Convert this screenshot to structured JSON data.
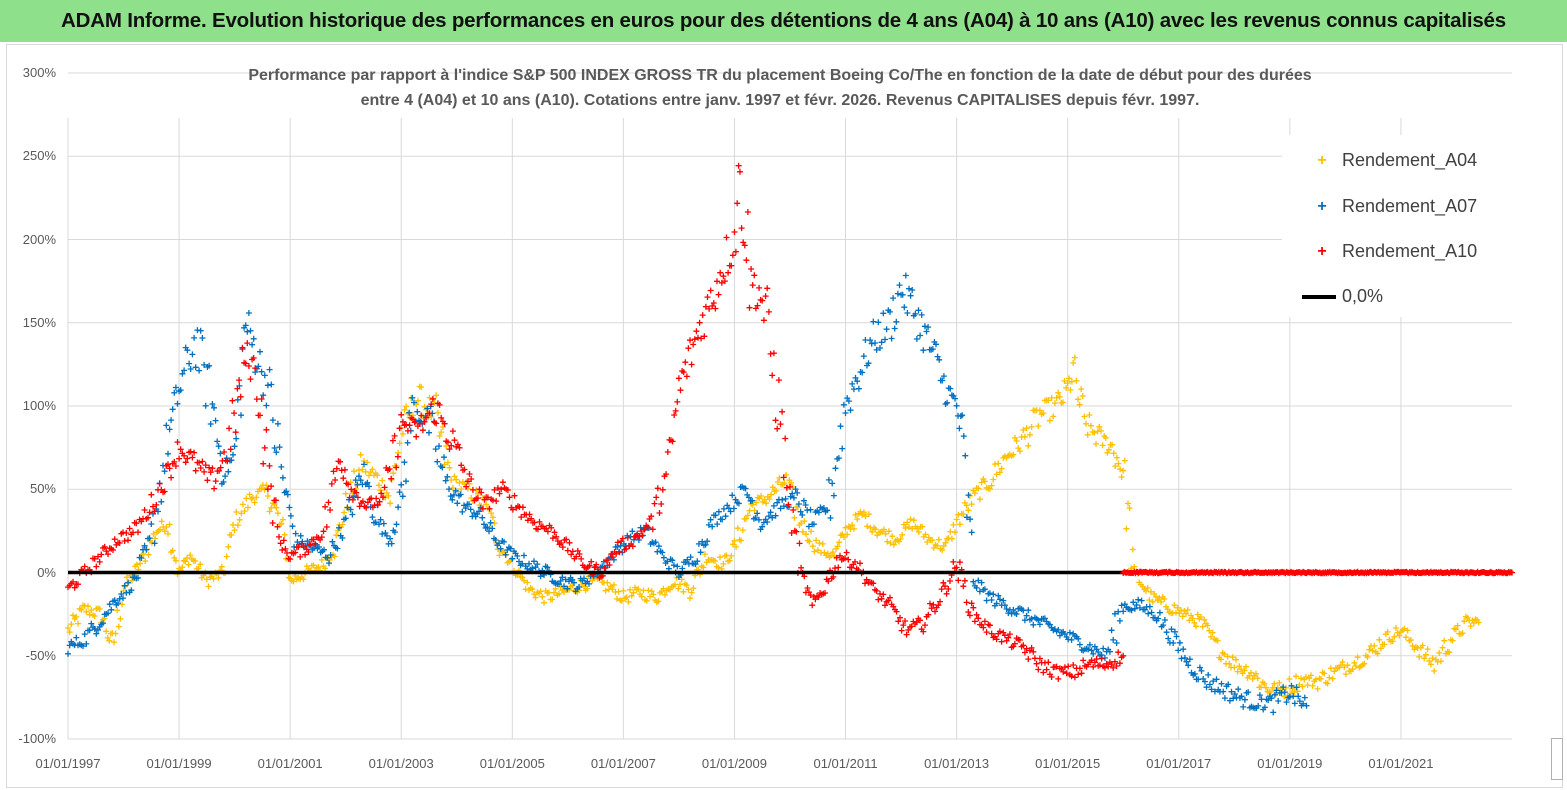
{
  "header": {
    "title": "ADAM Informe. Evolution historique des performances en euros pour des détentions de 4 ans (A04) à 10 ans (A10) avec les revenus connus capitalisés"
  },
  "colors": {
    "banner": "#8fe08a",
    "a04": "#ffc000",
    "a07": "#0070c0",
    "a10": "#ff0000",
    "zero": "#000000"
  },
  "chart_data": {
    "type": "scatter",
    "title_line1": "Performance par rapport à l'indice S&P 500 INDEX GROSS TR  du placement Boeing Co/The en fonction de la date de début pour des durées",
    "title_line2": "entre 4 (A04) et 10 ans (A10). Cotations entre janv. 1997 et févr. 2026. Revenus CAPITALISES depuis févr. 1997.",
    "xlabel": "",
    "ylabel": "",
    "xlim": [
      1997.0,
      2023.0
    ],
    "ylim": [
      -100,
      300
    ],
    "ytick_values": [
      -100,
      -50,
      0,
      50,
      100,
      150,
      200,
      250,
      300
    ],
    "ytick_labels": [
      "-100%",
      "-50%",
      "0%",
      "50%",
      "100%",
      "150%",
      "200%",
      "250%",
      "300%"
    ],
    "xtick_values": [
      1997,
      1999,
      2001,
      2003,
      2005,
      2007,
      2009,
      2011,
      2013,
      2015,
      2017,
      2019,
      2021
    ],
    "xtick_labels": [
      "01/01/1997",
      "01/01/1999",
      "01/01/2001",
      "01/01/2003",
      "01/01/2005",
      "01/01/2007",
      "01/01/2009",
      "01/01/2011",
      "01/01/2013",
      "01/01/2015",
      "01/01/2017",
      "01/01/2019",
      "01/01/2021"
    ],
    "legend_position": "top-right",
    "series": [
      {
        "name": "Rendement_A04",
        "marker": "+",
        "color": "#ffc000",
        "x": [
          1997.0,
          1997.3,
          1997.6,
          1997.8,
          1998.0,
          1998.3,
          1998.6,
          1998.8,
          1999.0,
          1999.2,
          1999.5,
          1999.8,
          2000.0,
          2000.3,
          2000.6,
          2000.9,
          2001.0,
          2001.3,
          2001.6,
          2001.8,
          2002.0,
          2002.3,
          2002.6,
          2002.8,
          2003.0,
          2003.3,
          2003.6,
          2003.9,
          2004.2,
          2004.5,
          2004.8,
          2005.0,
          2005.3,
          2005.6,
          2005.9,
          2006.2,
          2006.5,
          2006.8,
          2007.0,
          2007.3,
          2007.6,
          2007.9,
          2008.2,
          2008.5,
          2008.8,
          2009.0,
          2009.3,
          2009.6,
          2009.9,
          2010.2,
          2010.5,
          2010.8,
          2011.0,
          2011.3,
          2011.6,
          2011.9,
          2012.2,
          2012.5,
          2012.8,
          2013.0,
          2013.3,
          2013.6,
          2013.9,
          2014.2,
          2014.5,
          2014.8,
          2015.0,
          2015.1,
          2015.3,
          2015.6,
          2015.8,
          2016.0,
          2016.2,
          2016.5,
          2016.8,
          2017.1,
          2017.4,
          2017.7,
          2018.0,
          2018.3,
          2018.6,
          2018.9,
          2019.2,
          2019.5,
          2019.8,
          2020.1,
          2020.4,
          2020.7,
          2021.0,
          2021.3,
          2021.6,
          2021.9,
          2022.2,
          2022.4
        ],
        "values": [
          -35,
          -22,
          -25,
          -45,
          -10,
          5,
          25,
          30,
          0,
          10,
          -5,
          0,
          30,
          45,
          50,
          20,
          -5,
          0,
          5,
          15,
          40,
          65,
          55,
          45,
          85,
          105,
          95,
          55,
          50,
          40,
          15,
          5,
          -10,
          -15,
          -12,
          -8,
          -5,
          -10,
          -15,
          -12,
          -15,
          -5,
          -10,
          10,
          5,
          15,
          40,
          45,
          55,
          30,
          15,
          10,
          25,
          35,
          25,
          20,
          30,
          20,
          15,
          30,
          45,
          55,
          70,
          80,
          95,
          100,
          110,
          120,
          90,
          80,
          75,
          60,
          0,
          -15,
          -20,
          -25,
          -30,
          -45,
          -55,
          -60,
          -70,
          -70,
          -65,
          -65,
          -60,
          -55,
          -50,
          -40,
          -35,
          -45,
          -55,
          -40,
          -30,
          -30
        ]
      },
      {
        "name": "Rendement_A07",
        "marker": "+",
        "color": "#0070c0",
        "x": [
          1997.0,
          1997.3,
          1997.6,
          1997.9,
          1998.2,
          1998.5,
          1998.8,
          1999.0,
          1999.3,
          1999.6,
          1999.8,
          2000.0,
          2000.2,
          2000.4,
          2000.6,
          2000.9,
          2001.1,
          2001.4,
          2001.7,
          2002.0,
          2002.3,
          2002.6,
          2002.8,
          2003.0,
          2003.2,
          2003.5,
          2003.8,
          2004.1,
          2004.4,
          2004.7,
          2005.0,
          2005.3,
          2005.6,
          2005.9,
          2006.2,
          2006.5,
          2006.8,
          2007.1,
          2007.4,
          2007.7,
          2008.0,
          2008.3,
          2008.6,
          2008.9,
          2009.2,
          2009.5,
          2009.8,
          2010.1,
          2010.4,
          2010.7,
          2011.0,
          2011.3,
          2011.5,
          2011.8,
          2012.0,
          2012.2,
          2012.4,
          2012.6,
          2012.8,
          2013.0,
          2013.1,
          2013.3,
          2013.6,
          2013.9,
          2014.2,
          2014.5,
          2014.8,
          2015.1,
          2015.4,
          2015.7,
          2016.0,
          2016.3,
          2016.6,
          2016.9,
          2017.2,
          2017.5,
          2017.8,
          2018.1,
          2018.4,
          2018.7,
          2019.0,
          2019.3
        ],
        "values": [
          -45,
          -40,
          -28,
          -15,
          -5,
          20,
          80,
          110,
          140,
          100,
          60,
          70,
          150,
          130,
          110,
          50,
          20,
          15,
          10,
          30,
          60,
          30,
          20,
          45,
          100,
          90,
          55,
          40,
          35,
          20,
          10,
          5,
          0,
          -5,
          -8,
          0,
          10,
          20,
          25,
          10,
          0,
          10,
          30,
          40,
          50,
          30,
          40,
          45,
          30,
          40,
          100,
          125,
          140,
          150,
          170,
          160,
          145,
          130,
          110,
          100,
          80,
          -5,
          -15,
          -20,
          -25,
          -30,
          -35,
          -40,
          -45,
          -50,
          -20,
          -20,
          -25,
          -40,
          -55,
          -65,
          -70,
          -75,
          -78,
          -78,
          -72,
          -80
        ]
      },
      {
        "name": "Rendement_A10",
        "marker": "+",
        "color": "#ff0000",
        "x": [
          1997.0,
          1997.3,
          1997.6,
          1997.9,
          1998.2,
          1998.5,
          1998.8,
          1999.0,
          1999.3,
          1999.6,
          1999.9,
          2000.2,
          2000.4,
          2000.6,
          2000.8,
          2001.0,
          2001.3,
          2001.6,
          2001.9,
          2002.1,
          2002.4,
          2002.7,
          2003.0,
          2003.3,
          2003.6,
          2003.9,
          2004.2,
          2004.5,
          2004.8,
          2005.1,
          2005.4,
          2005.7,
          2006.0,
          2006.3,
          2006.6,
          2006.9,
          2007.2,
          2007.5,
          2007.8,
          2008.0,
          2008.2,
          2008.4,
          2008.6,
          2008.8,
          2009.0,
          2009.1,
          2009.3,
          2009.5,
          2009.8,
          2010.0,
          2010.2,
          2010.4,
          2010.6,
          2010.9,
          2011.2,
          2011.5,
          2011.8,
          2012.1,
          2012.4,
          2012.7,
          2013.0,
          2013.3,
          2013.6,
          2013.9,
          2014.2,
          2014.5,
          2014.8,
          2015.1,
          2015.4,
          2015.7,
          2016.0
        ],
        "values": [
          -10,
          0,
          10,
          20,
          25,
          40,
          60,
          75,
          65,
          55,
          75,
          130,
          120,
          60,
          20,
          10,
          15,
          25,
          70,
          50,
          40,
          45,
          90,
          85,
          100,
          80,
          55,
          40,
          50,
          40,
          30,
          25,
          15,
          5,
          0,
          15,
          20,
          30,
          60,
          110,
          130,
          150,
          165,
          185,
          200,
          240,
          175,
          165,
          100,
          40,
          0,
          -20,
          -10,
          10,
          5,
          -10,
          -20,
          -35,
          -30,
          -15,
          5,
          -25,
          -35,
          -40,
          -45,
          -55,
          -60,
          -60,
          -55,
          -55,
          -50
        ]
      },
      {
        "name": "0,0%",
        "type": "line",
        "color": "#000000",
        "x": [
          1997.0,
          2016.0
        ],
        "values": [
          0,
          0
        ]
      }
    ],
    "zero_markers_after_2016": {
      "series": "Rendement_A10",
      "x_start": 2016.0,
      "x_end": 2023.0,
      "value": 0
    }
  }
}
